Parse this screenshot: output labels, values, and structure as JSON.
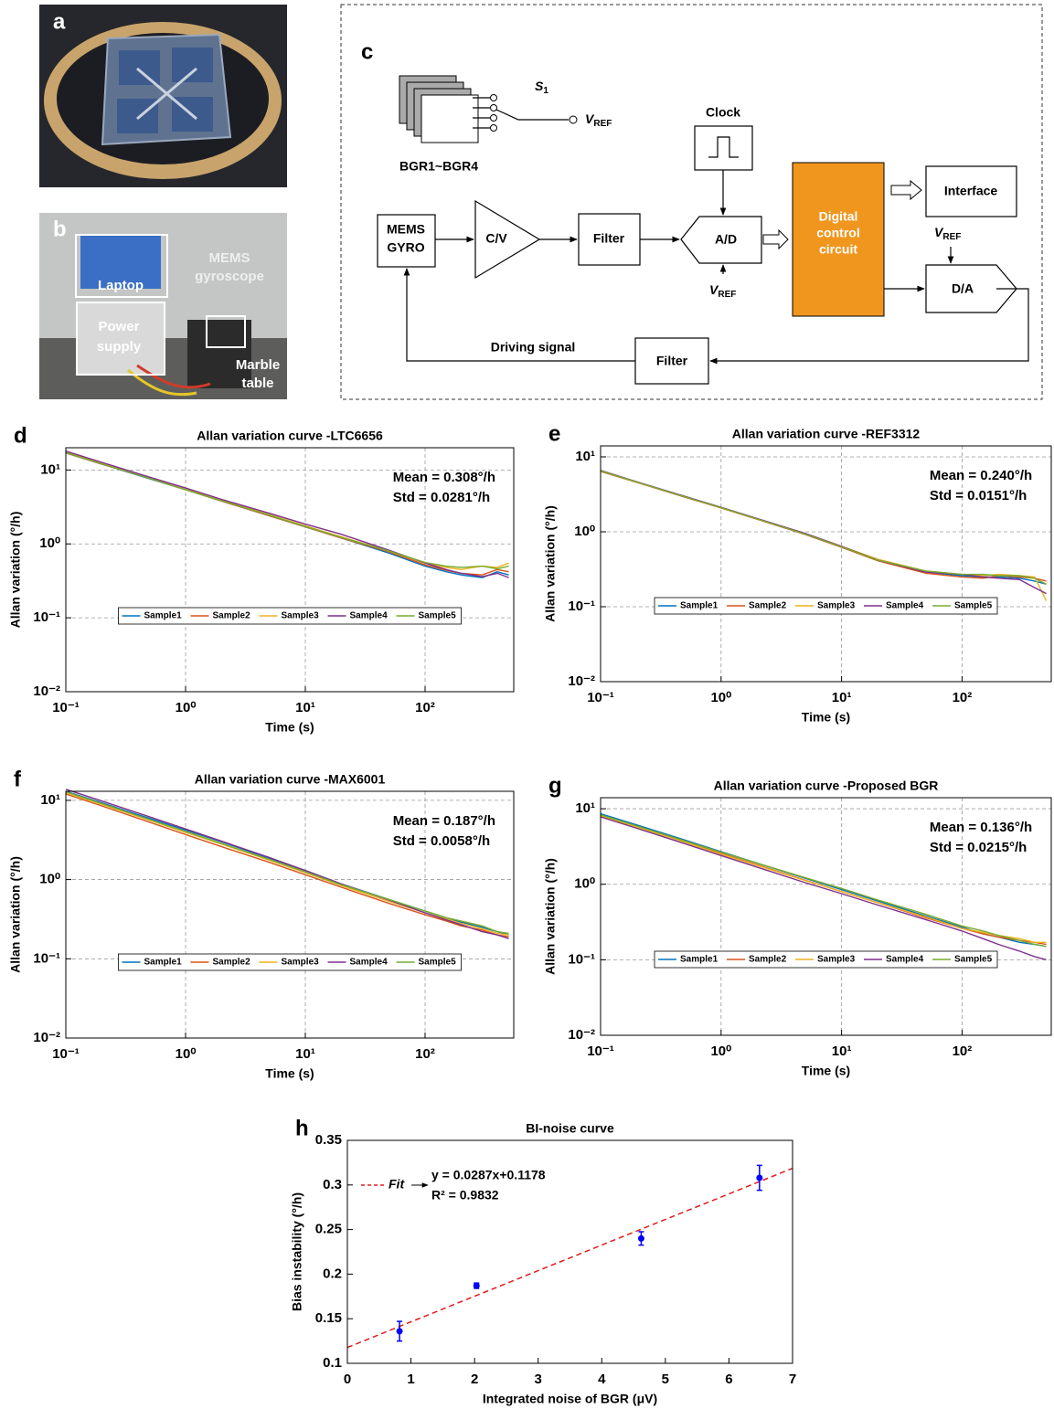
{
  "photo_a": {
    "panel": "a"
  },
  "photo_b": {
    "panel": "b",
    "labels": [
      [
        "Laptop"
      ],
      [
        "Power",
        "supply"
      ],
      [
        "MEMS",
        "gyroscope"
      ],
      [
        "Marble",
        "table"
      ]
    ]
  },
  "diagram": {
    "panel": "c",
    "switch": {
      "name": "S",
      "subscript": "1"
    },
    "vref": {
      "name": "V",
      "subscript": "REF"
    },
    "bgr": "BGR1~BGR4",
    "clock": "Clock",
    "interface": "Interface",
    "gyro": [
      "MEMS",
      "GYRO"
    ],
    "cv": "C/V",
    "filter": "Filter",
    "adc": "A/D",
    "dcc": [
      "Digital",
      "control",
      "circuit"
    ],
    "dac": "D/A",
    "driving": "Driving signal"
  },
  "chart_data": [
    {
      "type": "line",
      "panel": "d",
      "title": "Allan variation curve -LTC6656",
      "x_label": "Time (s)",
      "y_label": "Allan variation (°/h)",
      "xscale": "log",
      "yscale": "log",
      "grid": true,
      "legend": "lower center",
      "xlim": [
        0.1,
        550
      ],
      "ylim": [
        0.01,
        20
      ],
      "xticks": [
        {
          "value": 0.1,
          "label": "10⁻¹"
        },
        {
          "value": 1,
          "label": "10⁰"
        },
        {
          "value": 10,
          "label": "10¹"
        },
        {
          "value": 100,
          "label": "10²"
        }
      ],
      "yticks": [
        {
          "value": 0.01,
          "label": "10⁻²"
        },
        {
          "value": 0.1,
          "label": "10⁻¹"
        },
        {
          "value": 1,
          "label": "10⁰"
        },
        {
          "value": 10,
          "label": "10¹"
        }
      ],
      "annotations": [
        "Mean = 0.308°/h",
        "Std = 0.0281°/h"
      ],
      "x": [
        0.1,
        0.2,
        0.5,
        1,
        2,
        5,
        10,
        20,
        50,
        100,
        150,
        200,
        300,
        400,
        500
      ],
      "series": [
        {
          "name": "Sample1",
          "color": "#0072bd",
          "values": [
            17,
            12,
            7.6,
            5.4,
            3.8,
            2.4,
            1.7,
            1.2,
            0.75,
            0.5,
            0.42,
            0.38,
            0.35,
            0.42,
            0.38
          ]
        },
        {
          "name": "Sample2",
          "color": "#d95319",
          "values": [
            17,
            12,
            7.7,
            5.4,
            3.8,
            2.4,
            1.7,
            1.2,
            0.78,
            0.52,
            0.44,
            0.4,
            0.38,
            0.45,
            0.42
          ]
        },
        {
          "name": "Sample3",
          "color": "#edb120",
          "values": [
            17.5,
            12.3,
            7.8,
            5.5,
            3.9,
            2.5,
            1.75,
            1.25,
            0.8,
            0.55,
            0.48,
            0.45,
            0.5,
            0.48,
            0.55
          ]
        },
        {
          "name": "Sample4",
          "color": "#7e2f8e",
          "values": [
            18,
            12.7,
            8,
            5.7,
            4.0,
            2.6,
            1.85,
            1.35,
            0.82,
            0.55,
            0.45,
            0.4,
            0.36,
            0.4,
            0.35
          ]
        },
        {
          "name": "Sample5",
          "color": "#77ac30",
          "values": [
            17.2,
            12.1,
            7.7,
            5.4,
            3.85,
            2.45,
            1.72,
            1.22,
            0.8,
            0.56,
            0.5,
            0.48,
            0.5,
            0.46,
            0.5
          ]
        }
      ]
    },
    {
      "type": "line",
      "panel": "e",
      "title": "Allan variation curve -REF3312",
      "x_label": "Time (s)",
      "y_label": "Allan variation (°/h)",
      "xscale": "log",
      "yscale": "log",
      "grid": true,
      "legend": "lower center",
      "xlim": [
        0.1,
        550
      ],
      "ylim": [
        0.01,
        14
      ],
      "xticks": [
        {
          "value": 0.1,
          "label": "10⁻¹"
        },
        {
          "value": 1,
          "label": "10⁰"
        },
        {
          "value": 10,
          "label": "10¹"
        },
        {
          "value": 100,
          "label": "10²"
        }
      ],
      "yticks": [
        {
          "value": 0.01,
          "label": "10⁻²"
        },
        {
          "value": 0.1,
          "label": "10⁻¹"
        },
        {
          "value": 1,
          "label": "10⁰"
        },
        {
          "value": 10,
          "label": "10¹"
        }
      ],
      "annotations": [
        "Mean = 0.240°/h",
        "Std = 0.0151°/h"
      ],
      "x": [
        0.1,
        0.2,
        0.5,
        1,
        2,
        5,
        10,
        20,
        50,
        100,
        150,
        200,
        300,
        400,
        500
      ],
      "series": [
        {
          "name": "Sample1",
          "color": "#0072bd",
          "values": [
            6.5,
            4.6,
            2.95,
            2.1,
            1.48,
            0.93,
            0.63,
            0.42,
            0.29,
            0.26,
            0.25,
            0.25,
            0.24,
            0.22,
            0.2
          ]
        },
        {
          "name": "Sample2",
          "color": "#d95319",
          "values": [
            6.4,
            4.55,
            2.9,
            2.08,
            1.47,
            0.92,
            0.62,
            0.41,
            0.28,
            0.25,
            0.24,
            0.26,
            0.25,
            0.24,
            0.22
          ]
        },
        {
          "name": "Sample3",
          "color": "#edb120",
          "values": [
            6.5,
            4.6,
            2.95,
            2.1,
            1.49,
            0.94,
            0.64,
            0.43,
            0.3,
            0.27,
            0.26,
            0.27,
            0.26,
            0.25,
            0.12
          ]
        },
        {
          "name": "Sample4",
          "color": "#7e2f8e",
          "values": [
            6.6,
            4.65,
            2.97,
            2.12,
            1.5,
            0.95,
            0.64,
            0.42,
            0.29,
            0.27,
            0.25,
            0.24,
            0.23,
            0.18,
            0.15
          ]
        },
        {
          "name": "Sample5",
          "color": "#77ac30",
          "values": [
            6.5,
            4.6,
            2.93,
            2.1,
            1.48,
            0.93,
            0.63,
            0.42,
            0.3,
            0.27,
            0.27,
            0.26,
            0.26,
            0.24,
            0.2
          ]
        }
      ]
    },
    {
      "type": "line",
      "panel": "f",
      "title": "Allan variation curve -MAX6001",
      "x_label": "Time (s)",
      "y_label": "Allan variation (°/h)",
      "xscale": "log",
      "yscale": "log",
      "grid": true,
      "legend": "lower center",
      "xlim": [
        0.1,
        550
      ],
      "ylim": [
        0.01,
        13
      ],
      "xticks": [
        {
          "value": 0.1,
          "label": "10⁻¹"
        },
        {
          "value": 1,
          "label": "10⁰"
        },
        {
          "value": 10,
          "label": "10¹"
        },
        {
          "value": 100,
          "label": "10²"
        }
      ],
      "yticks": [
        {
          "value": 0.01,
          "label": "10⁻²"
        },
        {
          "value": 0.1,
          "label": "10⁻¹"
        },
        {
          "value": 1,
          "label": "10⁰"
        },
        {
          "value": 10,
          "label": "10¹"
        }
      ],
      "annotations": [
        "Mean = 0.187°/h",
        "Std = 0.0058°/h"
      ],
      "x": [
        0.1,
        0.2,
        0.5,
        1,
        2,
        5,
        10,
        20,
        50,
        100,
        150,
        200,
        300,
        400,
        500
      ],
      "series": [
        {
          "name": "Sample1",
          "color": "#0072bd",
          "values": [
            13,
            9.3,
            5.9,
            4.2,
            3.0,
            1.85,
            1.3,
            0.88,
            0.56,
            0.4,
            0.33,
            0.29,
            0.25,
            0.22,
            0.2
          ]
        },
        {
          "name": "Sample2",
          "color": "#d95319",
          "values": [
            12,
            8.5,
            5.3,
            3.7,
            2.6,
            1.65,
            1.15,
            0.8,
            0.5,
            0.36,
            0.3,
            0.26,
            0.23,
            0.2,
            0.19
          ]
        },
        {
          "name": "Sample3",
          "color": "#edb120",
          "values": [
            12.5,
            8.9,
            5.6,
            3.95,
            2.8,
            1.75,
            1.22,
            0.84,
            0.53,
            0.38,
            0.32,
            0.28,
            0.24,
            0.21,
            0.2
          ]
        },
        {
          "name": "Sample4",
          "color": "#7e2f8e",
          "values": [
            13.8,
            9.8,
            6.2,
            4.35,
            3.05,
            1.9,
            1.3,
            0.88,
            0.55,
            0.38,
            0.31,
            0.27,
            0.22,
            0.2,
            0.18
          ]
        },
        {
          "name": "Sample5",
          "color": "#77ac30",
          "values": [
            12.8,
            9.1,
            5.7,
            4.05,
            2.85,
            1.8,
            1.25,
            0.86,
            0.56,
            0.4,
            0.33,
            0.3,
            0.26,
            0.22,
            0.21
          ]
        }
      ]
    },
    {
      "type": "line",
      "panel": "g",
      "title": "Allan variation curve -Proposed BGR",
      "x_label": "Time (s)",
      "y_label": "Allan variation (°/h)",
      "xscale": "log",
      "yscale": "log",
      "grid": true,
      "legend": "lower center",
      "xlim": [
        0.1,
        550
      ],
      "ylim": [
        0.01,
        14
      ],
      "xticks": [
        {
          "value": 0.1,
          "label": "10⁻¹"
        },
        {
          "value": 1,
          "label": "10⁰"
        },
        {
          "value": 10,
          "label": "10¹"
        },
        {
          "value": 100,
          "label": "10²"
        }
      ],
      "yticks": [
        {
          "value": 0.01,
          "label": "10⁻²"
        },
        {
          "value": 0.1,
          "label": "10⁻¹"
        },
        {
          "value": 1,
          "label": "10⁰"
        },
        {
          "value": 10,
          "label": "10¹"
        }
      ],
      "annotations": [
        "Mean = 0.136°/h",
        "Std = 0.0215°/h"
      ],
      "x": [
        0.1,
        0.2,
        0.5,
        1,
        2,
        5,
        10,
        20,
        50,
        100,
        150,
        200,
        300,
        400,
        500
      ],
      "series": [
        {
          "name": "Sample1",
          "color": "#0072bd",
          "values": [
            8.6,
            6.1,
            3.85,
            2.7,
            1.9,
            1.2,
            0.85,
            0.6,
            0.38,
            0.27,
            0.22,
            0.2,
            0.17,
            0.16,
            0.15
          ]
        },
        {
          "name": "Sample2",
          "color": "#d95319",
          "values": [
            8.2,
            5.8,
            3.65,
            2.55,
            1.8,
            1.13,
            0.8,
            0.57,
            0.36,
            0.26,
            0.22,
            0.2,
            0.18,
            0.17,
            0.16
          ]
        },
        {
          "name": "Sample3",
          "color": "#edb120",
          "values": [
            8.0,
            5.7,
            3.6,
            2.5,
            1.77,
            1.12,
            0.8,
            0.57,
            0.37,
            0.26,
            0.23,
            0.21,
            0.19,
            0.17,
            0.17
          ]
        },
        {
          "name": "Sample4",
          "color": "#7e2f8e",
          "values": [
            7.8,
            5.5,
            3.45,
            2.4,
            1.68,
            1.05,
            0.75,
            0.53,
            0.34,
            0.24,
            0.19,
            0.16,
            0.13,
            0.11,
            0.1
          ]
        },
        {
          "name": "Sample5",
          "color": "#77ac30",
          "values": [
            8.3,
            5.9,
            3.75,
            2.65,
            1.9,
            1.22,
            0.88,
            0.62,
            0.4,
            0.28,
            0.24,
            0.21,
            0.18,
            0.16,
            0.15
          ]
        }
      ]
    },
    {
      "type": "scatter",
      "panel": "h",
      "title": "BI-noise curve",
      "x_label": "Integrated noise of BGR (μV)",
      "y_label": "Bias instability (°/h)",
      "xlim": [
        0,
        7
      ],
      "ylim": [
        0.1,
        0.35
      ],
      "xticks": [
        0,
        1,
        2,
        3,
        4,
        5,
        6,
        7
      ],
      "yticks": [
        0.1,
        0.15,
        0.2,
        0.25,
        0.3,
        0.35
      ],
      "color": "#0000ff",
      "x": [
        0.82,
        2.03,
        4.62,
        6.48
      ],
      "values": [
        0.136,
        0.187,
        0.24,
        0.308
      ],
      "errors": [
        0.011,
        0.003,
        0.0075,
        0.014
      ],
      "fit": {
        "label": "Fit",
        "equation": "y = 0.0287x+0.1178",
        "r2": "R² = 0.9832",
        "slope": 0.0287,
        "intercept": 0.1178,
        "color": "#e31a1c"
      }
    }
  ]
}
